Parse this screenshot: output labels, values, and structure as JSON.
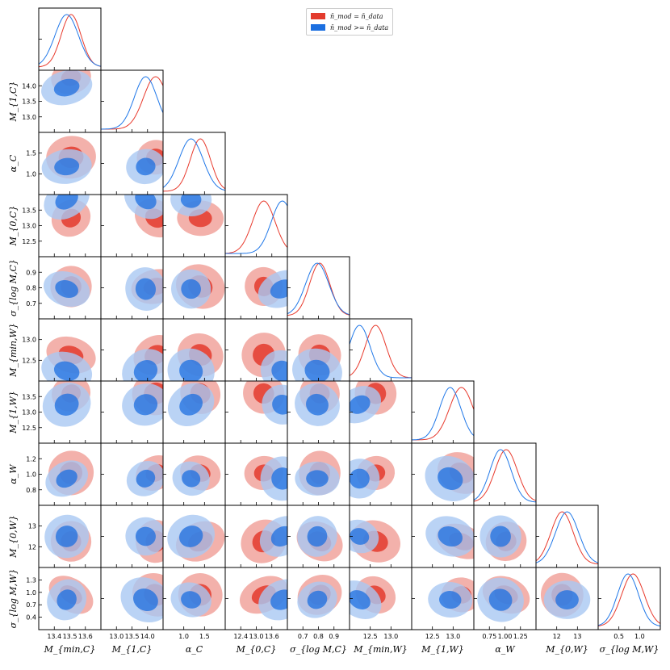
{
  "chart_data": {
    "type": "corner",
    "parameters": [
      {
        "label": "M_{min,C}",
        "ticks": [
          "13.4",
          "13.5",
          "13.6"
        ]
      },
      {
        "label": "M_{1,C}",
        "ticks": [
          "13.0",
          "13.5",
          "14.0"
        ]
      },
      {
        "label": "α_C",
        "ticks": [
          "1.0",
          "1.5"
        ]
      },
      {
        "label": "M_{0,C}",
        "ticks": [
          "12.4",
          "13.0",
          "13.6"
        ]
      },
      {
        "label": "σ_{log M,C}",
        "ticks": [
          "0.7",
          "0.8",
          "0.9"
        ]
      },
      {
        "label": "M_{min,W}",
        "ticks": [
          "12.5",
          "13.0"
        ]
      },
      {
        "label": "M_{1,W}",
        "ticks": [
          "12.5",
          "13.0"
        ]
      },
      {
        "label": "α_W",
        "ticks": [
          "0.75",
          "1.00",
          "1.25"
        ]
      },
      {
        "label": "M_{0,W}",
        "ticks": [
          "12",
          "13"
        ]
      },
      {
        "label": "σ_{log M,W}",
        "ticks": [
          "0.5",
          "1.0"
        ]
      }
    ],
    "row_ticks": [
      [],
      [
        "14.0",
        "13.5",
        "13.0"
      ],
      [
        "1.5",
        "1.0"
      ],
      [
        "13.5",
        "13.0",
        "12.5"
      ],
      [
        "0.9",
        "0.8",
        "0.7"
      ],
      [
        "13.0",
        "12.5"
      ],
      [
        "13.5",
        "13.0",
        "12.5"
      ],
      [
        "1.2",
        "1.0",
        "0.8"
      ],
      [
        "13",
        "12"
      ],
      [
        "1.3",
        "1.0",
        "0.7",
        "0.4"
      ]
    ],
    "series": [
      {
        "name": "n̄_mod = n̄_data",
        "color": "#e8392c",
        "fill_outer": "#f2a9a2",
        "fill_inner": "#e33b2d",
        "peaks": [
          0.52,
          0.88,
          0.6,
          0.62,
          0.52,
          0.42,
          0.8,
          0.52,
          0.42,
          0.56
        ]
      },
      {
        "name": "n̄_mod >= n̄_data",
        "color": "#1f77e8",
        "fill_outer": "#a9c8f2",
        "fill_inner": "#1c6fe0",
        "peaks": [
          0.45,
          0.72,
          0.45,
          0.92,
          0.48,
          0.16,
          0.62,
          0.43,
          0.5,
          0.48
        ]
      }
    ],
    "legend_position": "top-center"
  }
}
